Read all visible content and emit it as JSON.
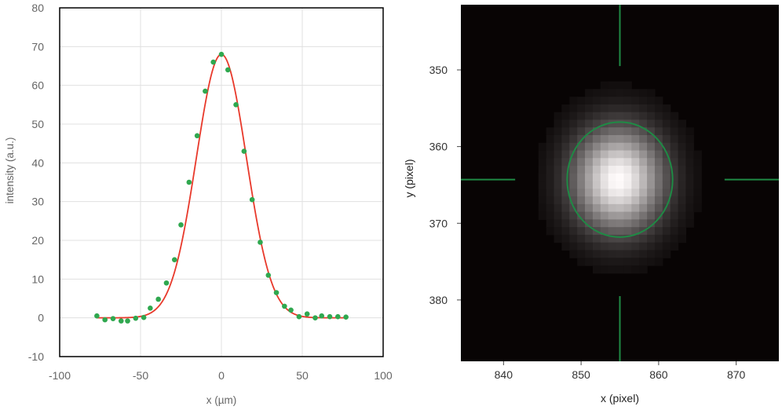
{
  "chart_data": [
    {
      "type": "scatter",
      "xlabel": "x (µm)",
      "ylabel": "intensity (a.u.)",
      "xlim": [
        -100,
        100
      ],
      "ylim": [
        -10,
        80
      ],
      "xticks": [
        "-100",
        "-50",
        "0",
        "50",
        "100"
      ],
      "yticks": [
        "80",
        "70",
        "60",
        "50",
        "40",
        "30",
        "20",
        "10",
        "0",
        "-10"
      ],
      "grid": true,
      "colors": {
        "points": "#2fa84f",
        "fit": "#e8392b",
        "grid": "#e0e0e0",
        "axes": "#000000"
      },
      "series": [
        {
          "kind": "points",
          "x": [
            -77,
            -72,
            -67,
            -62,
            -58,
            -53,
            -48,
            -44,
            -39,
            -34,
            -29,
            -25,
            -20,
            -15,
            -10,
            -5,
            0,
            4,
            9,
            14,
            19,
            24,
            29,
            34,
            39,
            43,
            48,
            53,
            58,
            62,
            67,
            72,
            77
          ],
          "y": [
            0.5,
            -0.5,
            -0.2,
            -0.8,
            -0.8,
            -0.1,
            0.1,
            2.5,
            4.8,
            9,
            15,
            24,
            35,
            47,
            58.5,
            66,
            68,
            64,
            55,
            43,
            30.5,
            19.5,
            11,
            6.5,
            3,
            2,
            0.3,
            1,
            0,
            0.5,
            0.3,
            0.3,
            0.2
          ]
        },
        {
          "kind": "fit",
          "amplitude": 68,
          "center": 0,
          "sigma": 15.5,
          "offset": 0
        }
      ]
    },
    {
      "type": "heatmap",
      "xlabel": "x (pixel)",
      "ylabel": "y (pixel)",
      "xlim": [
        834.5,
        875.5
      ],
      "ylim": [
        388,
        341.5
      ],
      "xticks": [
        "840",
        "850",
        "860",
        "870"
      ],
      "yticks": [
        "350",
        "360",
        "370",
        "380"
      ],
      "grid": false,
      "spot": {
        "x": 854.8,
        "y": 364.3,
        "sigma_x": 3.6,
        "sigma_y": 4.2
      },
      "ellipse": {
        "cx": 855,
        "cy": 364.3,
        "rx": 6.8,
        "ry": 7.5
      },
      "crosshair": {
        "x": 855,
        "y": 364.3
      },
      "colors": {
        "background": "#080404",
        "overlay": "#1f8a45"
      }
    }
  ]
}
